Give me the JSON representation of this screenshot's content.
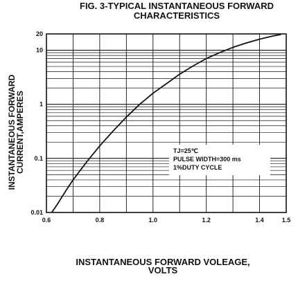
{
  "chart_data": {
    "type": "line",
    "title": "FIG. 3-TYPICAL INSTANTANEOUS FORWARD",
    "title_line2": "CHARACTERISTICS",
    "xlabel_line1": "INSTANTANEOUS FORWARD VOLEAGE,",
    "xlabel_line2": "VOLTS",
    "ylabel_line1": "INSTANTANEOUS FORWARD",
    "ylabel_line2": "CURRENT,AMPERES",
    "x_scale": "linear",
    "y_scale": "log",
    "xlim": [
      0.6,
      1.5
    ],
    "ylim": [
      0.01,
      20
    ],
    "x_ticks": [
      "0.6",
      "0.8",
      "1.0",
      "1.2",
      "1.4",
      "1.5"
    ],
    "x_tick_values": [
      0.6,
      0.8,
      1.0,
      1.2,
      1.4,
      1.5
    ],
    "y_ticks": [
      "0.01",
      "0.1",
      "1",
      "10",
      "20"
    ],
    "y_tick_values": [
      0.01,
      0.1,
      1,
      10,
      20
    ],
    "grid": true,
    "legend_box": [
      "TJ=25℃",
      "PULSE WIDTH=300 ms",
      "1%DUTY CYCLE"
    ],
    "series": [
      {
        "x": [
          0.62,
          0.64,
          0.67,
          0.7,
          0.75,
          0.8,
          0.85,
          0.9,
          0.95,
          1.0,
          1.05,
          1.1,
          1.15,
          1.2,
          1.25,
          1.3,
          1.35,
          1.4,
          1.45,
          1.48
        ],
        "y": [
          0.01,
          0.014,
          0.024,
          0.04,
          0.085,
          0.17,
          0.32,
          0.58,
          1.0,
          1.6,
          2.4,
          3.6,
          5.1,
          7.0,
          9.0,
          11.3,
          13.6,
          16.0,
          18.3,
          19.5
        ]
      }
    ],
    "colors": {
      "line": "#111111",
      "grid": "#111111",
      "background": "#ffffff"
    }
  }
}
